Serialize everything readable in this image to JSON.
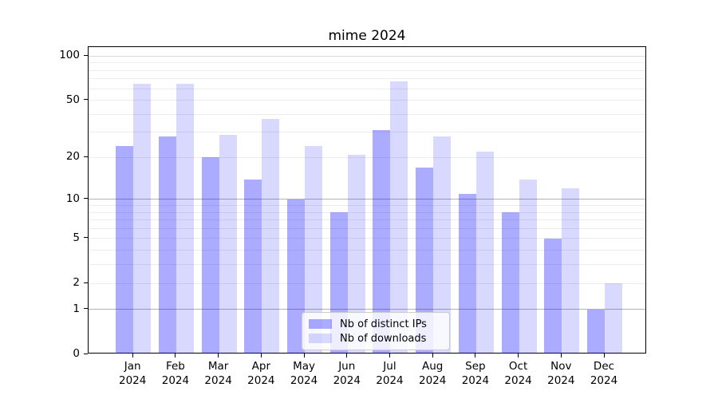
{
  "figure": {
    "title": "mime 2024",
    "background": "#ffffff"
  },
  "chart_data": {
    "type": "bar",
    "title": "mime 2024",
    "categories": [
      "Jan",
      "Feb",
      "Mar",
      "Apr",
      "May",
      "Jun",
      "Jul",
      "Aug",
      "Sep",
      "Oct",
      "Nov",
      "Dec"
    ],
    "category_year": "2024",
    "series": [
      {
        "name": "Nb of distinct IPs",
        "color": "rgba(0,0,255,0.33)",
        "values": [
          24,
          28,
          20,
          14,
          10,
          8,
          31,
          17,
          11,
          8,
          5,
          1
        ]
      },
      {
        "name": "Nb of downloads",
        "color": "rgba(0,0,255,0.15)",
        "values": [
          65,
          65,
          29,
          37,
          24,
          21,
          67,
          28,
          22,
          14,
          12,
          2
        ]
      }
    ],
    "yaxis": {
      "scale": "log1p",
      "tick_labels": [
        "0",
        "1",
        "2",
        "5",
        "10",
        "20",
        "50",
        "100"
      ],
      "ticks": [
        0,
        1,
        2,
        5,
        10,
        20,
        50,
        100
      ],
      "ylim": [
        0,
        115
      ],
      "gridlines_dark": [
        1,
        10
      ],
      "gridlines_mid": [
        100
      ],
      "gridlines_light": [
        2,
        3,
        4,
        5,
        6,
        7,
        8,
        9,
        20,
        30,
        40,
        50,
        60,
        70,
        80,
        90
      ],
      "grid_color_dark": "#b2b2b2",
      "grid_color_mid": "#d8d8d8",
      "grid_color_light": "#ececec"
    },
    "legend": {
      "position": "lower-center",
      "labels": [
        "Nb of distinct IPs",
        "Nb of downloads"
      ]
    },
    "grid": true
  }
}
